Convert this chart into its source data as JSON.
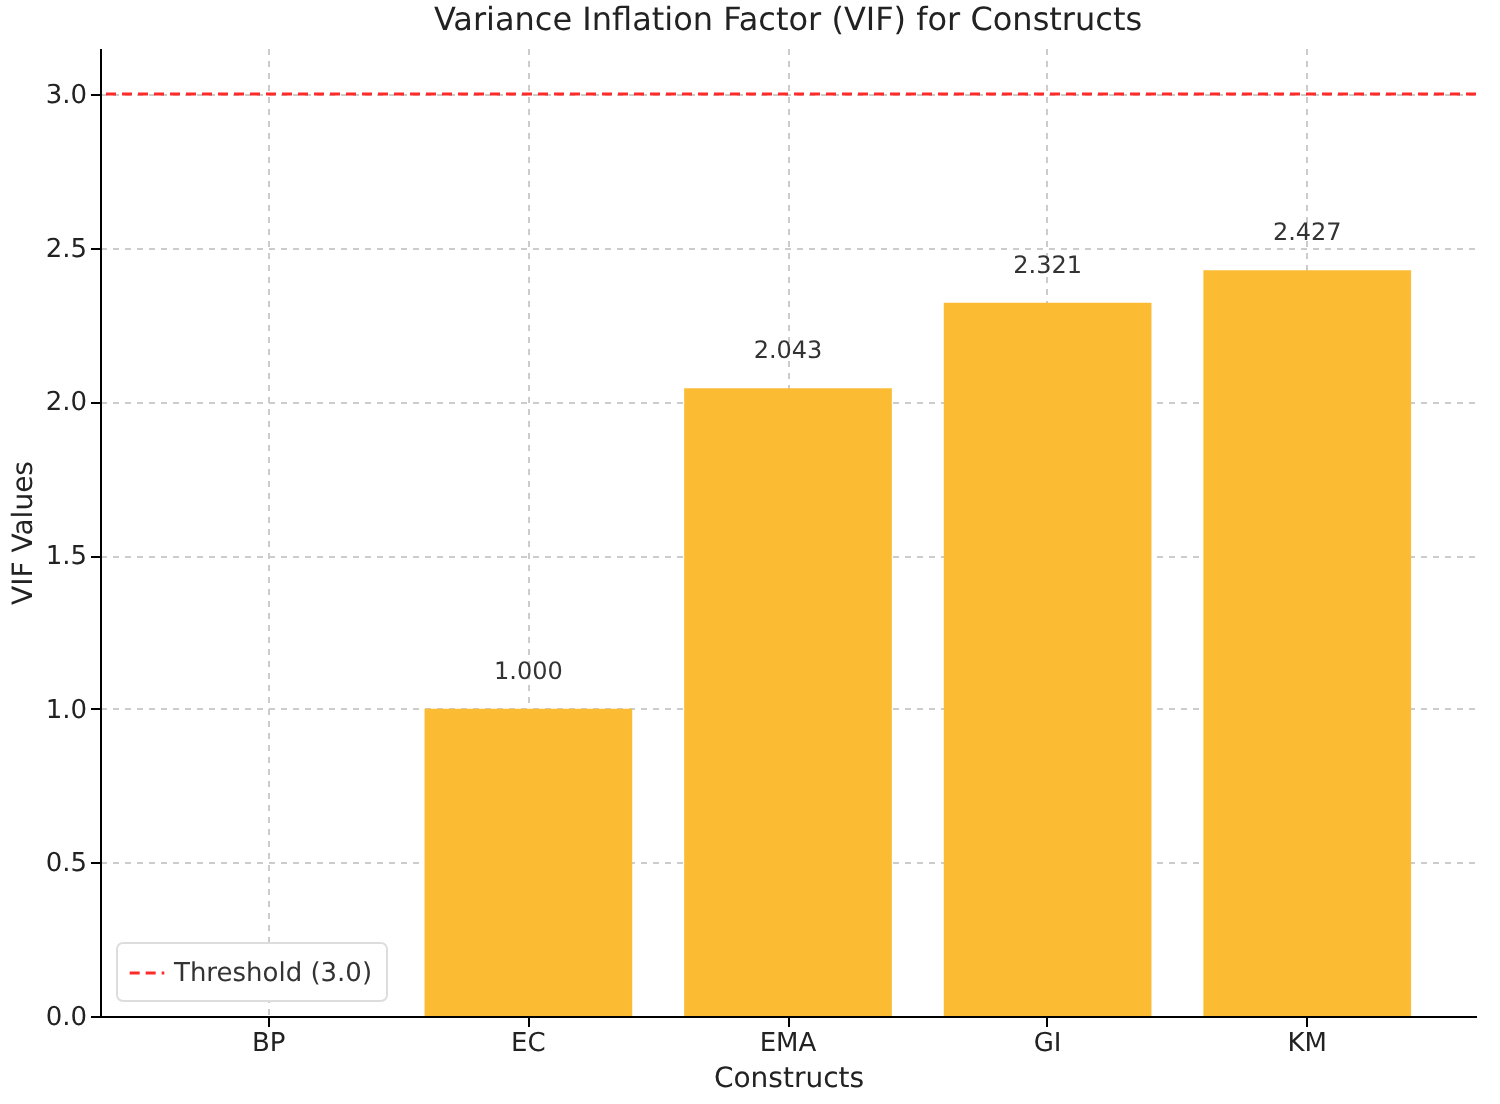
{
  "chart_data": {
    "type": "bar",
    "title": "Variance Inflation Factor (VIF) for Constructs",
    "xlabel": "Constructs",
    "ylabel": "VIF Values",
    "categories": [
      "BP",
      "EC",
      "EMA",
      "GI",
      "KM"
    ],
    "values": [
      0,
      1.0,
      2.043,
      2.321,
      2.427
    ],
    "value_labels": [
      null,
      "1.000",
      "2.043",
      "2.321",
      "2.427"
    ],
    "color": "#fbbc33",
    "ylim": [
      0,
      3.15
    ],
    "yticks": [
      {
        "value": 0,
        "label": "0.0"
      },
      {
        "value": 0.5,
        "label": "0.5"
      },
      {
        "value": 1,
        "label": "1.0"
      },
      {
        "value": 1.5,
        "label": "1.5"
      },
      {
        "value": 2,
        "label": "2.0"
      },
      {
        "value": 2.5,
        "label": "2.5"
      },
      {
        "value": 3,
        "label": "3.0"
      }
    ],
    "ref_lines": [
      {
        "axis": "y",
        "value": 3.0,
        "label": "Threshold (3.0)",
        "color": "#ff2a2a",
        "line_style": "dashed"
      }
    ],
    "grid": true,
    "legend": "bottom left"
  }
}
